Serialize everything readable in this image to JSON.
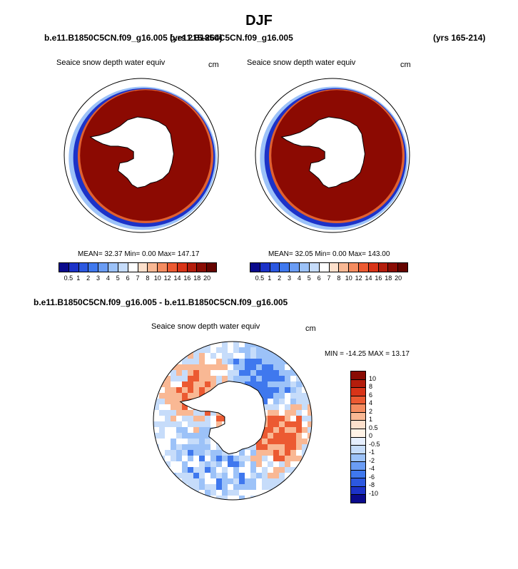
{
  "page": {
    "title": "DJF",
    "left_case": "b.e11.B1850C5CN.f09_g16.005 (yrs 215-264)",
    "mid_case_overlap": "b.e11.B1850C5CN.f09_g16.005",
    "right_years": "(yrs 165-214)",
    "diff_title": "b.e11.B1850C5CN.f09_g16.005 - b.e11.B1850C5CN.f09_g16.005"
  },
  "panels": {
    "left": {
      "variable": "Seaice snow depth water equiv",
      "units": "cm",
      "stats": "MEAN=  32.37  Min=   0.00  Max= 147.17"
    },
    "right": {
      "variable": "Seaice snow depth water equiv",
      "units": "cm",
      "stats": "MEAN=  32.05  Min=   0.00  Max= 143.00"
    },
    "diff": {
      "variable": "Seaice snow depth water equiv",
      "units": "cm",
      "stats": "MIN = -14.25 MAX =  13.17"
    }
  },
  "colorbar_abs": {
    "labels": [
      "0.5",
      "1",
      "2",
      "3",
      "4",
      "5",
      "6",
      "7",
      "8",
      "10",
      "12",
      "14",
      "16",
      "18",
      "20"
    ],
    "colors": [
      "#0a0a8c",
      "#1c32c8",
      "#2c58e0",
      "#3f78ee",
      "#6a9cf4",
      "#9cc2f8",
      "#c6dcfa",
      "#ffffff",
      "#fde0cc",
      "#f9b894",
      "#f48c60",
      "#ec5a32",
      "#d93418",
      "#b41d0c",
      "#8a0c04",
      "#650400"
    ]
  },
  "colorbar_diff": {
    "labels": [
      "10",
      "8",
      "6",
      "4",
      "2",
      "1",
      "0.5",
      "0",
      "-0.5",
      "-1",
      "-2",
      "-4",
      "-6",
      "-8",
      "-10"
    ],
    "colors": [
      "#8a0c04",
      "#b41d0c",
      "#d93418",
      "#ec5a32",
      "#f48c60",
      "#f9b894",
      "#fde0cc",
      "#fff2e6",
      "#e6efff",
      "#c6dcfa",
      "#9cc2f8",
      "#6a9cf4",
      "#3f78ee",
      "#2c58e0",
      "#1c32c8",
      "#0a0a8c"
    ]
  },
  "map_colors": {
    "ice_fill": "#8c0a02",
    "ice_edge": "#e06030",
    "edge_blue": "#1c32c8",
    "edge_light": "#9cc2f8",
    "diff_red": "#ec5a32",
    "diff_lightred": "#f9b894",
    "diff_blue": "#3f78ee",
    "diff_lightblue": "#c6dcfa"
  }
}
